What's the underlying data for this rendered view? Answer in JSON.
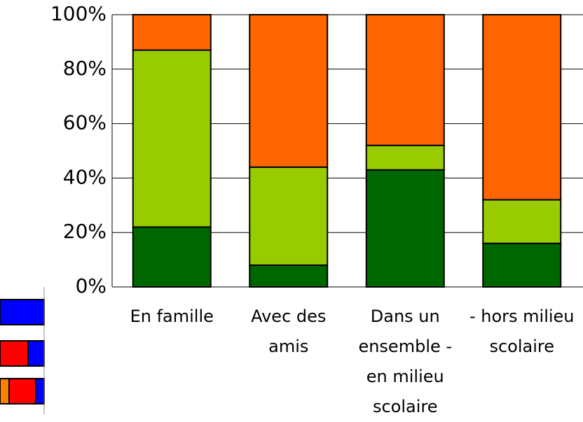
{
  "chart_data": {
    "type": "stacked_bar",
    "categories": [
      "En famille",
      "Avec des amis",
      "Dans un ensemble - en milieu scolaire",
      "- hors milieu scolaire"
    ],
    "series": [
      {
        "color": "#006600",
        "values": [
          22,
          8,
          43,
          16
        ]
      },
      {
        "color": "#99cc00",
        "values": [
          65,
          36,
          9,
          16
        ]
      },
      {
        "color": "#ff6600",
        "values": [
          13,
          56,
          48,
          68
        ]
      }
    ],
    "ylim": [
      0,
      100
    ],
    "yticks": [
      {
        "value": 0,
        "label": "0%"
      },
      {
        "value": 20,
        "label": "20%"
      },
      {
        "value": 40,
        "label": "40%"
      },
      {
        "value": 60,
        "label": "60%"
      },
      {
        "value": 80,
        "label": "80%"
      },
      {
        "value": 100,
        "label": "100%"
      }
    ],
    "grid": true
  }
}
